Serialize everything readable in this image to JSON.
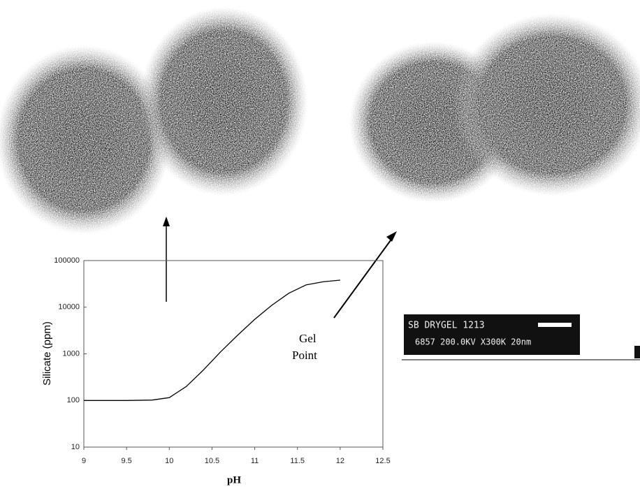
{
  "chart_data": {
    "type": "line",
    "annotations": [
      "Gel",
      "Point"
    ],
    "xlabel": "pH",
    "ylabel": "Silicate (ppm)",
    "x": [
      9,
      9.5,
      9.8,
      10,
      10.2,
      10.4,
      10.6,
      10.8,
      11,
      11.2,
      11.4,
      11.6,
      11.8,
      12
    ],
    "values": [
      100,
      100,
      102,
      115,
      200,
      450,
      1100,
      2500,
      5500,
      11000,
      20000,
      30000,
      35000,
      38000
    ],
    "color": "#000000",
    "xlim": [
      9,
      12.5
    ],
    "xticks": [
      9,
      9.5,
      10,
      10.5,
      11,
      11.5,
      12,
      12.5
    ],
    "ylim": [
      10,
      100000
    ],
    "yticks": [
      10,
      100,
      1000,
      10000,
      100000
    ],
    "log_y": true,
    "grid": false
  },
  "sem_label": {
    "line1": "SB DRYGEL 1213",
    "line2": "6857 200.0KV X300K 20nm"
  }
}
